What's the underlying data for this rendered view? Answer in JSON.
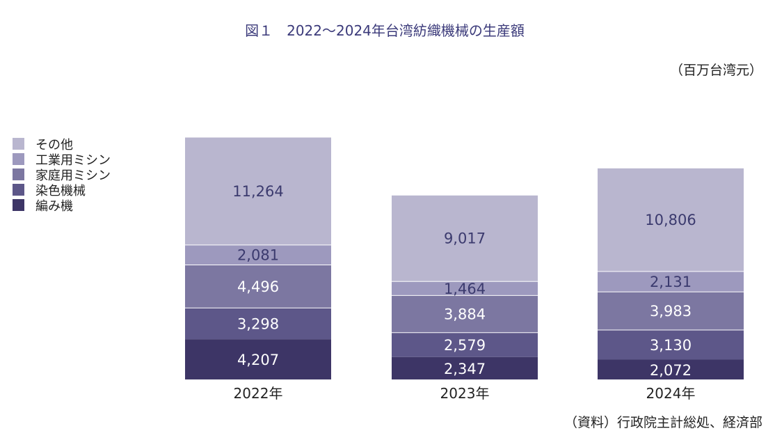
{
  "chart_data": {
    "type": "bar",
    "stacked": true,
    "title": "図１　2022～2024年台湾紡織機械の生産額",
    "unit": "（百万台湾元）",
    "source": "（資料）行政院主計総処、経済部",
    "categories": [
      "2022年",
      "2023年",
      "2024年"
    ],
    "series": [
      {
        "name": "編み機",
        "color": "#3d3566",
        "values": [
          4207,
          2347,
          2072
        ],
        "labels": [
          "4,207",
          "2,347",
          "2,072"
        ]
      },
      {
        "name": "染色機械",
        "color": "#5d5789",
        "values": [
          3298,
          2579,
          3130
        ],
        "labels": [
          "3,298",
          "2,579",
          "3,130"
        ]
      },
      {
        "name": "家庭用ミシン",
        "color": "#7c77a1",
        "values": [
          4496,
          3884,
          3983
        ],
        "labels": [
          "4,496",
          "3,884",
          "3,983"
        ]
      },
      {
        "name": "工業用ミシン",
        "color": "#9d99be",
        "values": [
          2081,
          1464,
          2131
        ],
        "labels": [
          "2,081",
          "1,464",
          "2,131"
        ]
      },
      {
        "name": "その他",
        "color": "#b9b6cf",
        "values": [
          11264,
          9017,
          10806
        ],
        "labels": [
          "11,264",
          "9,017",
          "10,806"
        ]
      }
    ],
    "legend": {
      "position": "left",
      "order": [
        "その他",
        "工業用ミシン",
        "家庭用ミシン",
        "染色機械",
        "編み機"
      ]
    },
    "label_colors": {
      "dark": "#ffffff",
      "light": "#3b3a6e"
    },
    "grid": false
  }
}
